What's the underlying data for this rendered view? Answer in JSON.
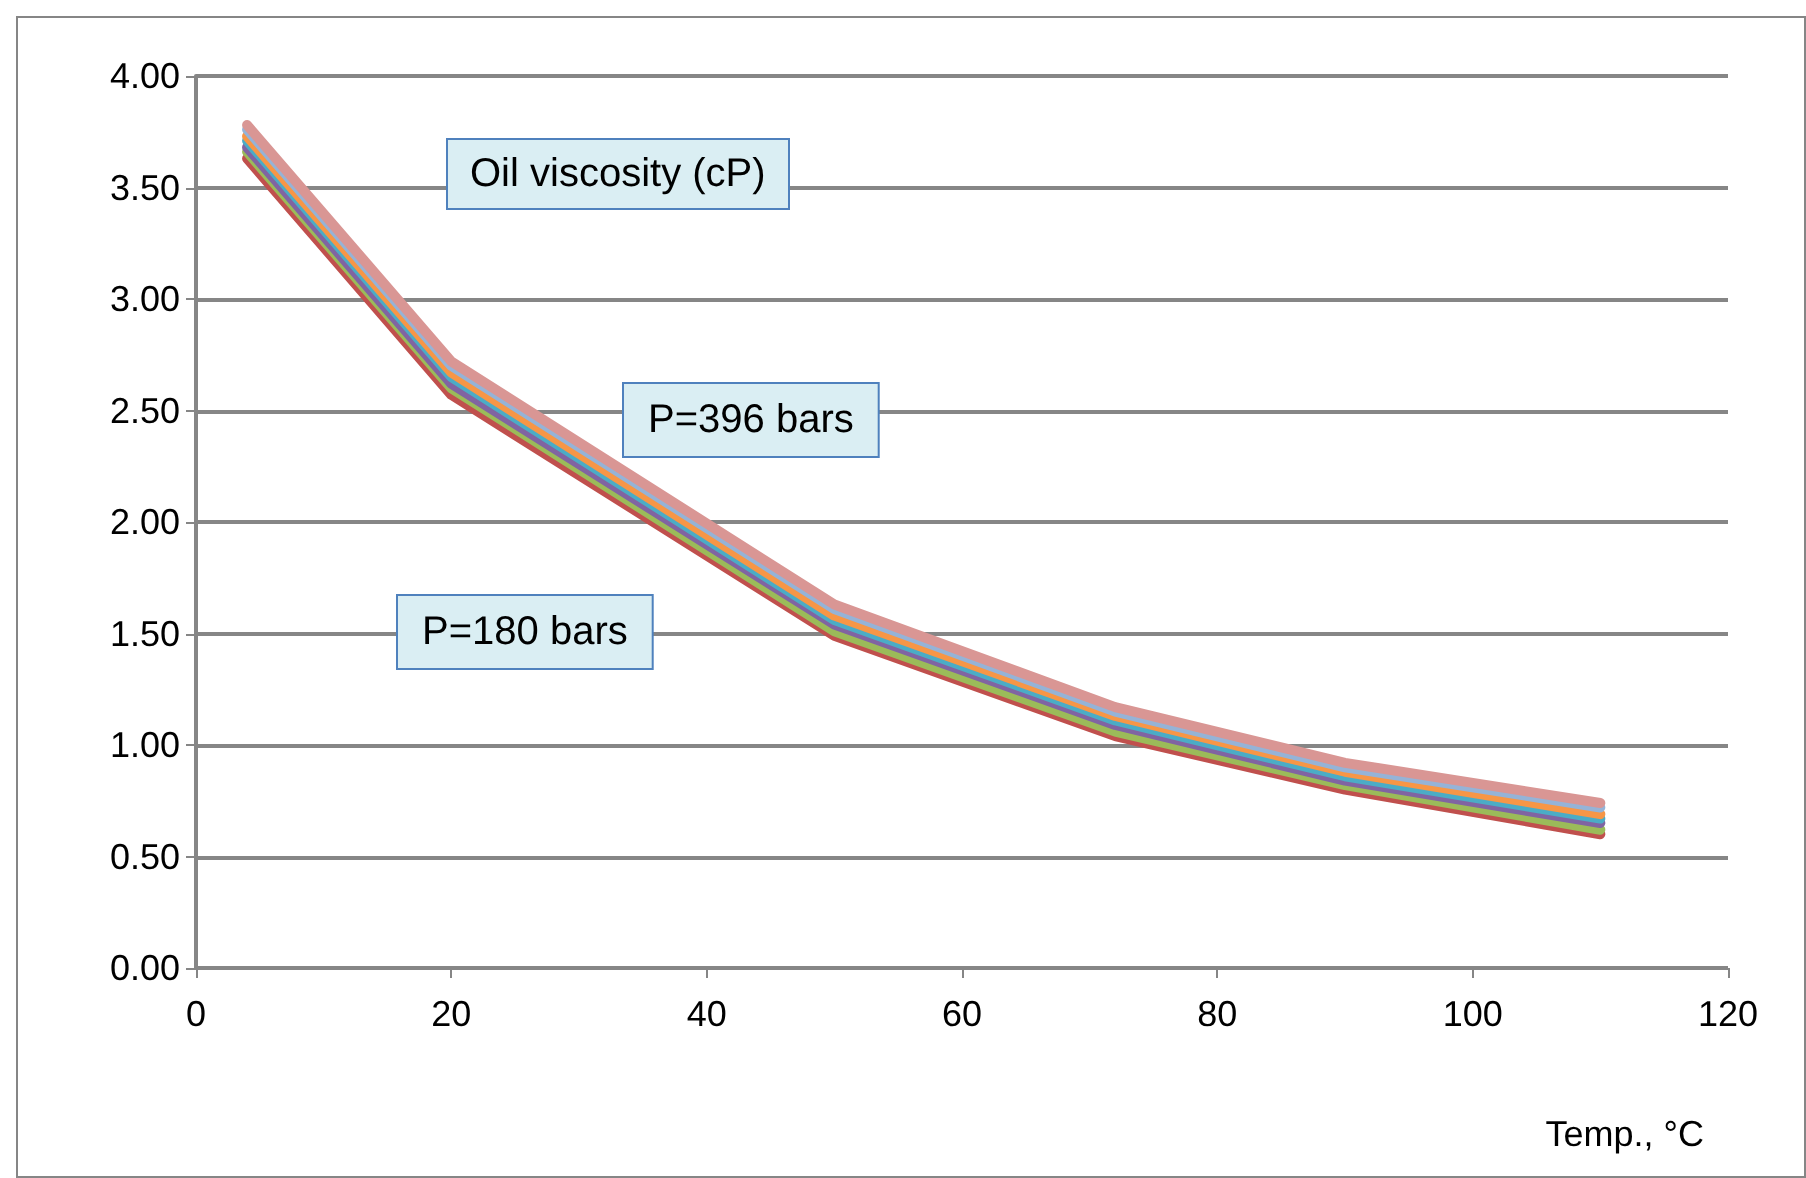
{
  "chart_data": {
    "type": "line",
    "title": "Oil viscosity (cP)",
    "xlabel": "Temp., °C",
    "annotations": [
      "P=396 bars",
      "P=180 bars"
    ],
    "x": [
      4,
      20,
      50,
      72,
      90,
      110
    ],
    "series": [
      {
        "color": "#c0504d",
        "values": [
          3.63,
          2.57,
          1.49,
          1.04,
          0.8,
          0.6
        ]
      },
      {
        "color": "#9bbb59",
        "values": [
          3.66,
          2.6,
          1.51,
          1.06,
          0.82,
          0.62
        ]
      },
      {
        "color": "#8064a2",
        "values": [
          3.68,
          2.62,
          1.54,
          1.09,
          0.84,
          0.65
        ]
      },
      {
        "color": "#4bacc6",
        "values": [
          3.71,
          2.65,
          1.56,
          1.11,
          0.86,
          0.67
        ]
      },
      {
        "color": "#f79646",
        "values": [
          3.73,
          2.67,
          1.58,
          1.13,
          0.88,
          0.69
        ]
      },
      {
        "color": "#95b3d7",
        "values": [
          3.76,
          2.7,
          1.61,
          1.15,
          0.9,
          0.72
        ]
      },
      {
        "color": "#d99694",
        "values": [
          3.78,
          2.72,
          1.63,
          1.17,
          0.92,
          0.74
        ]
      }
    ],
    "xlim": [
      0,
      120
    ],
    "xticks": [
      0,
      20,
      40,
      60,
      80,
      100,
      120
    ],
    "ylim": [
      0,
      4
    ],
    "yticks": [
      {
        "value": 0,
        "label": "0.00"
      },
      {
        "value": 0.5,
        "label": "0.50"
      },
      {
        "value": 1,
        "label": "1.00"
      },
      {
        "value": 1.5,
        "label": "1.50"
      },
      {
        "value": 2,
        "label": "2.00"
      },
      {
        "value": 2.5,
        "label": "2.50"
      },
      {
        "value": 3,
        "label": "3.00"
      },
      {
        "value": 3.5,
        "label": "3.50"
      },
      {
        "value": 4,
        "label": "4.00"
      }
    ],
    "grid": "y",
    "marker": "none",
    "line_style": "solid"
  }
}
